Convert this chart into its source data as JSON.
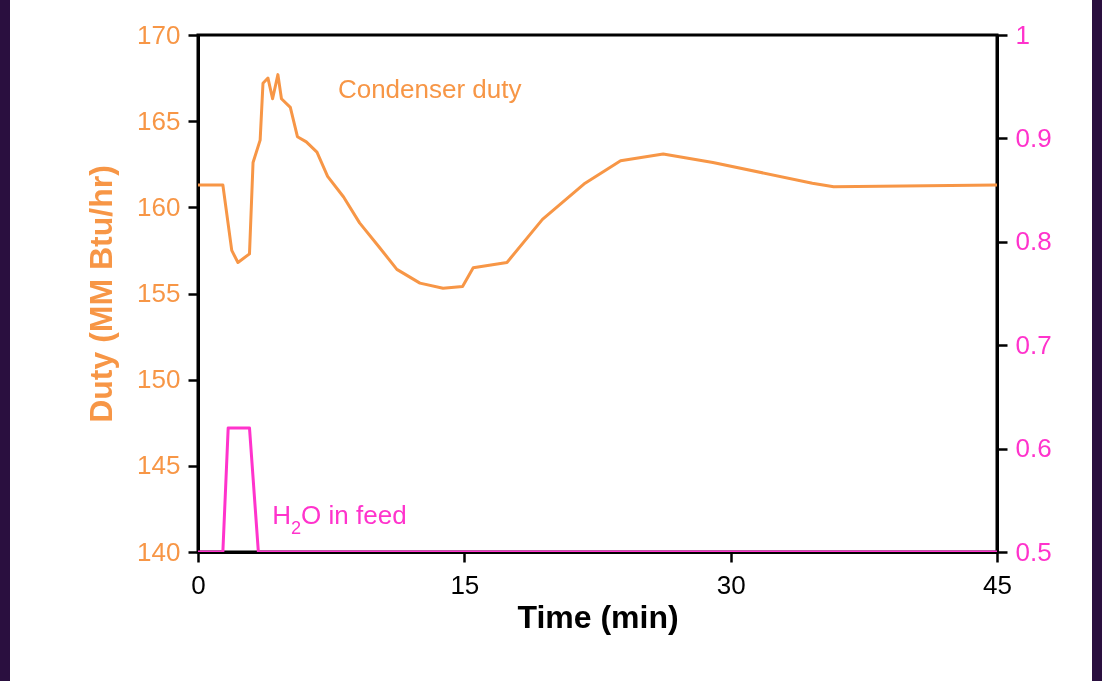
{
  "chart_data": {
    "type": "line",
    "xlabel": "Time (min)",
    "ylabel": "Duty (MM Btu/hr)",
    "xlim": [
      0,
      45
    ],
    "xticks": [
      0,
      15,
      30,
      45
    ],
    "ylim": [
      140,
      170
    ],
    "yticks": [
      140,
      145,
      150,
      155,
      160,
      165,
      170
    ],
    "y2lim": [
      0.5,
      1
    ],
    "y2ticks": [
      0.5,
      0.6,
      0.7,
      0.8,
      0.9,
      1
    ],
    "series": [
      {
        "name": "Condenser duty",
        "color": "#f79646",
        "x": [
          0,
          1.4,
          1.9,
          2.25,
          2.9,
          3.1,
          3.5,
          3.66,
          3.94,
          4.2,
          4.5,
          4.7,
          5.2,
          5.6,
          6.1,
          6.7,
          7.3,
          8.2,
          9.1,
          10.2,
          11.2,
          12.5,
          13.8,
          14.9,
          15.5,
          17.4,
          19.4,
          21.8,
          23.8,
          26.2,
          29,
          34.6,
          35.8,
          45
        ],
        "values": [
          161.3,
          161.3,
          157.5,
          156.8,
          157.3,
          162.6,
          163.9,
          167.2,
          167.5,
          166.3,
          167.7,
          166.3,
          165.8,
          164.1,
          163.8,
          163.2,
          161.8,
          160.6,
          159.1,
          157.7,
          156.4,
          155.6,
          155.3,
          155.4,
          156.5,
          156.8,
          159.3,
          161.4,
          162.7,
          163.1,
          162.6,
          161.4,
          161.2,
          161.3
        ]
      },
      {
        "name": "H$_{2}$O in feed",
        "color": "#ff33cc",
        "axis": "y2",
        "x": [
          0,
          1.4,
          1.7,
          2.9,
          3.4,
          45
        ],
        "values": [
          0.5,
          0.5,
          0.62,
          0.62,
          0.5,
          0.5
        ]
      }
    ]
  }
}
